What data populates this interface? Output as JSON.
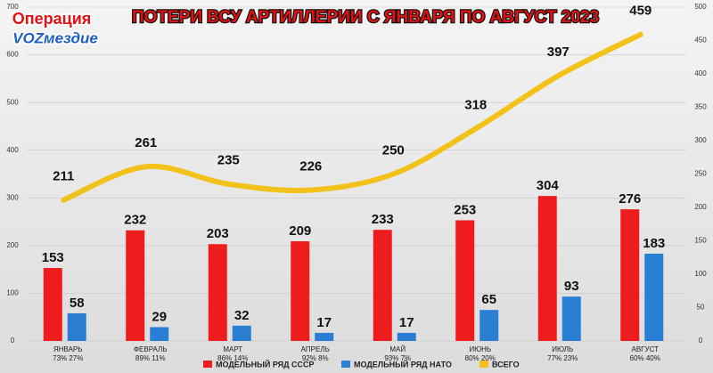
{
  "logo": {
    "line1": "Операция",
    "line2": "VOZмездие"
  },
  "chart_data": {
    "type": "bar-line",
    "title": "ПОТЕРИ ВСУ АРТИЛЛЕРИИ С ЯНВАРЯ ПО АВГУСТ 2023",
    "categories": [
      "ЯНВАРЬ",
      "ФЕВРАЛЬ",
      "МАРТ",
      "АПРЕЛЬ",
      "МАЙ",
      "ИЮНЬ",
      "ИЮЛЬ",
      "АВГУСТ"
    ],
    "shares": [
      "73% 27%",
      "89% 11%",
      "86% 14%",
      "92% 8%",
      "93% 7%",
      "80% 20%",
      "77% 23%",
      "60% 40%"
    ],
    "series": [
      {
        "name": "МОДЕЛЬНЫЙ РЯД СССР",
        "color": "#ee1c1c",
        "kind": "bar",
        "values": [
          153,
          232,
          203,
          209,
          233,
          253,
          304,
          276
        ]
      },
      {
        "name": "МОДЕЛЬНЫЙ РЯД НАТО",
        "color": "#2a7fd4",
        "kind": "bar",
        "values": [
          58,
          29,
          32,
          17,
          17,
          65,
          93,
          183
        ]
      },
      {
        "name": "ВСЕГО",
        "color": "#f2c21b",
        "kind": "line",
        "axis": "y2",
        "values": [
          211,
          261,
          235,
          226,
          250,
          318,
          397,
          459
        ]
      }
    ],
    "ylim": [
      0,
      700
    ],
    "yticks": [
      0,
      100,
      200,
      300,
      400,
      500,
      600,
      700
    ],
    "y2lim": [
      0,
      500
    ],
    "y2ticks": [
      0,
      50,
      100,
      150,
      200,
      250,
      300,
      350,
      400,
      450,
      500
    ],
    "grid": true
  }
}
